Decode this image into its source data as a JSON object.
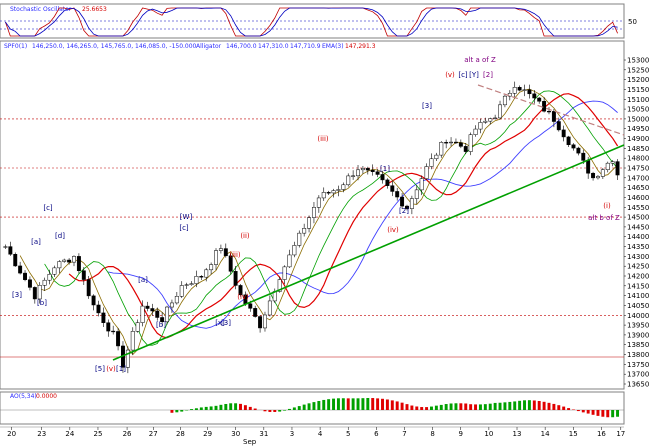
{
  "panels": {
    "stochastic": {
      "name": "Stochastic Oscillator",
      "value": "25.6653",
      "ticks": [
        "50"
      ]
    },
    "price": {
      "symbol": "SPF0(1)",
      "ohlc": "146,250.0, 146,265.0, 145,765.0, 146,085.0, -150.000",
      "alligator_name": "Alligator",
      "alligator_jaw": "146,700.0",
      "alligator_teeth": "147,310.0",
      "alligator_lips": "147,710.9",
      "ema_name": "EMA(3)",
      "ema_value": "147,291.3",
      "ticks": [
        "15300",
        "15250",
        "15200",
        "15150",
        "15100",
        "15050",
        "15000",
        "14950",
        "14900",
        "14850",
        "14800",
        "14750",
        "14700",
        "14650",
        "14600",
        "14550",
        "14500",
        "14450",
        "14400",
        "14350",
        "14300",
        "14250",
        "14200",
        "14150",
        "14100",
        "14050",
        "14000",
        "13950",
        "13900",
        "13850",
        "13800",
        "13750",
        "13700",
        "13650"
      ]
    },
    "ao": {
      "name": "AO(5,34)",
      "value": "0.0000"
    },
    "dates": {
      "labels": [
        "20",
        "23",
        "24",
        "25",
        "26",
        "27",
        "28",
        "29",
        "30",
        "31",
        "3",
        "4",
        "5",
        "6",
        "7",
        "8",
        "9",
        "10",
        "13",
        "14",
        "15",
        "16",
        "17"
      ],
      "month": "Sep"
    }
  },
  "waves": [
    {
      "text": "[1]",
      "color": "#000080"
    },
    {
      "text": "[5]",
      "color": "#000080"
    },
    {
      "text": "(v)",
      "color": "#d40000"
    },
    {
      "text": "[3]",
      "color": "#000080"
    },
    {
      "text": "[b]",
      "color": "#000080"
    },
    {
      "text": "[c]",
      "color": "#000080"
    },
    {
      "text": "[a]",
      "color": "#000080"
    },
    {
      "text": "[d]",
      "color": "#000080"
    },
    {
      "text": "[3]",
      "color": "#000080"
    },
    {
      "text": "[a]",
      "color": "#000080"
    },
    {
      "text": "[b]",
      "color": "#000080"
    },
    {
      "text": "[c]",
      "color": "#000080"
    },
    {
      "text": "[W]",
      "color": "#000080"
    },
    {
      "text": "[x]",
      "color": "#000080"
    },
    {
      "text": "(ii)",
      "color": "#d40000"
    },
    {
      "text": "(iii)",
      "color": "#d40000"
    },
    {
      "text": "(iv)",
      "color": "#d40000"
    },
    {
      "text": "(iii)",
      "color": "#d40000"
    },
    {
      "text": "[1]",
      "color": "#000080"
    },
    {
      "text": "[2]",
      "color": "#000080"
    },
    {
      "text": "(iv)",
      "color": "#d40000"
    },
    {
      "text": "[3]",
      "color": "#000080"
    },
    {
      "text": "alt a of Z",
      "color": "#800080"
    },
    {
      "text": "(v)",
      "color": "#d40000"
    },
    {
      "text": "[c]",
      "color": "#000080"
    },
    {
      "text": "[Y]",
      "color": "#000080"
    },
    {
      "text": "[2]",
      "color": "#800080"
    },
    {
      "text": "(i)",
      "color": "#d40000"
    },
    {
      "text": "alt b of Z",
      "color": "#800080"
    }
  ],
  "colors": {
    "candle_up": "#ffffff",
    "candle_down": "#000000",
    "jaw": "#4040ff",
    "teeth": "#e00000",
    "lips": "#00a000",
    "ema": "#8b6c00",
    "trendline": "#00a000",
    "resistance": "#c08080",
    "gridline": "#c00000",
    "stoch_k": "#c00000",
    "stoch_d": "#0000c0",
    "ao_up": "#00a000",
    "ao_down": "#e00000"
  },
  "chart_data": {
    "type": "candlestick",
    "title": "",
    "ylim": [
      13650,
      15300
    ],
    "grid": "horizontal dashed red at 14000, 14500, 14750, 15000",
    "x_dates": [
      "20",
      "23",
      "24",
      "25",
      "26",
      "27",
      "28",
      "29",
      "30",
      "31",
      "3",
      "4",
      "5",
      "6",
      "7",
      "8",
      "9",
      "10",
      "13",
      "14",
      "15",
      "16",
      "17"
    ],
    "close_path": [
      [
        0,
        14350
      ],
      [
        3,
        14100
      ],
      [
        5,
        14250
      ],
      [
        7,
        14300
      ],
      [
        9,
        14050
      ],
      [
        11,
        13900
      ],
      [
        12,
        13750
      ],
      [
        14,
        14050
      ],
      [
        16,
        13980
      ],
      [
        18,
        14150
      ],
      [
        20,
        14200
      ],
      [
        22,
        14350
      ],
      [
        24,
        14100
      ],
      [
        26,
        13950
      ],
      [
        28,
        14200
      ],
      [
        30,
        14400
      ],
      [
        32,
        14600
      ],
      [
        34,
        14650
      ],
      [
        36,
        14750
      ],
      [
        38,
        14700
      ],
      [
        40,
        14600
      ],
      [
        41,
        14550
      ],
      [
        43,
        14750
      ],
      [
        45,
        14900
      ],
      [
        47,
        14850
      ],
      [
        48,
        14950
      ],
      [
        50,
        15020
      ],
      [
        52,
        15180
      ],
      [
        54,
        15100
      ],
      [
        56,
        15000
      ],
      [
        58,
        14850
      ],
      [
        60,
        14700
      ],
      [
        62,
        14800
      ],
      [
        63,
        14640
      ]
    ]
  }
}
